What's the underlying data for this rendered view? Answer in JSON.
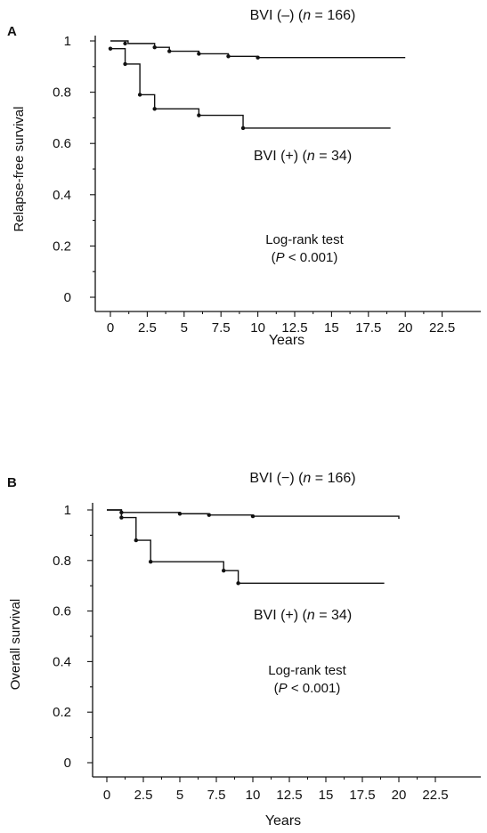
{
  "chart_data": [
    {
      "panel_label": "A",
      "type": "line",
      "subtype": "kaplan-meier",
      "xlabel": "Years",
      "ylabel": "Relapse-free survival",
      "xlim": [
        0,
        22.5
      ],
      "ylim": [
        0,
        1
      ],
      "xticks": [
        "0",
        "2.5",
        "5",
        "7.5",
        "10",
        "12.5",
        "15",
        "17.5",
        "20",
        "22.5"
      ],
      "yticks": [
        "0",
        "0.2",
        "0.4",
        "0.6",
        "0.8",
        "1"
      ],
      "series": [
        {
          "name": "BVI (–)",
          "n": "166",
          "steps": [
            [
              0,
              1.0
            ],
            [
              1.2,
              0.99
            ],
            [
              3,
              0.975
            ],
            [
              4,
              0.96
            ],
            [
              6,
              0.95
            ],
            [
              8,
              0.94
            ],
            [
              10,
              0.935
            ],
            [
              20,
              0.935
            ]
          ],
          "censor_marks": [
            [
              1,
              0.99
            ],
            [
              3,
              0.975
            ],
            [
              4,
              0.96
            ],
            [
              6,
              0.95
            ],
            [
              8,
              0.94
            ],
            [
              10,
              0.935
            ]
          ]
        },
        {
          "name": "BVI (+)",
          "n": "34",
          "steps": [
            [
              0,
              0.97
            ],
            [
              1,
              0.91
            ],
            [
              2,
              0.79
            ],
            [
              3,
              0.735
            ],
            [
              6,
              0.71
            ],
            [
              9,
              0.66
            ],
            [
              19,
              0.66
            ]
          ],
          "censor_marks": [
            [
              0,
              0.97
            ],
            [
              1,
              0.91
            ],
            [
              2,
              0.79
            ],
            [
              3,
              0.735
            ],
            [
              6,
              0.71
            ],
            [
              9,
              0.66
            ]
          ]
        }
      ],
      "annotation": {
        "line1": "Log-rank test",
        "line2": "(P < 0.001)",
        "p": "P",
        "rest": " < 0.001)"
      }
    },
    {
      "panel_label": "B",
      "type": "line",
      "subtype": "kaplan-meier",
      "xlabel": "Years",
      "ylabel": "Overall survival",
      "xlim": [
        0,
        22.5
      ],
      "ylim": [
        0,
        1
      ],
      "xticks": [
        "0",
        "2.5",
        "5",
        "7.5",
        "10",
        "12.5",
        "15",
        "17.5",
        "20",
        "22.5"
      ],
      "yticks": [
        "0",
        "0.2",
        "0.4",
        "0.6",
        "0.8",
        "1"
      ],
      "series": [
        {
          "name": "BVI (−)",
          "n": "166",
          "steps": [
            [
              0,
              1.0
            ],
            [
              1,
              0.99
            ],
            [
              5,
              0.985
            ],
            [
              7,
              0.98
            ],
            [
              10,
              0.975
            ],
            [
              20,
              0.965
            ]
          ],
          "censor_marks": [
            [
              1,
              0.99
            ],
            [
              5,
              0.985
            ],
            [
              7,
              0.98
            ],
            [
              10,
              0.975
            ]
          ]
        },
        {
          "name": "BVI (+)",
          "n": "34",
          "steps": [
            [
              0,
              1.0
            ],
            [
              1,
              0.97
            ],
            [
              2,
              0.88
            ],
            [
              3,
              0.795
            ],
            [
              8,
              0.76
            ],
            [
              9,
              0.71
            ],
            [
              19,
              0.71
            ]
          ],
          "censor_marks": [
            [
              1,
              0.97
            ],
            [
              2,
              0.88
            ],
            [
              3,
              0.795
            ],
            [
              8,
              0.76
            ],
            [
              9,
              0.71
            ]
          ]
        }
      ],
      "annotation": {
        "line1": "Log-rank test",
        "line2": "(P < 0.001)",
        "p": "P",
        "rest": " < 0.001)"
      }
    }
  ]
}
